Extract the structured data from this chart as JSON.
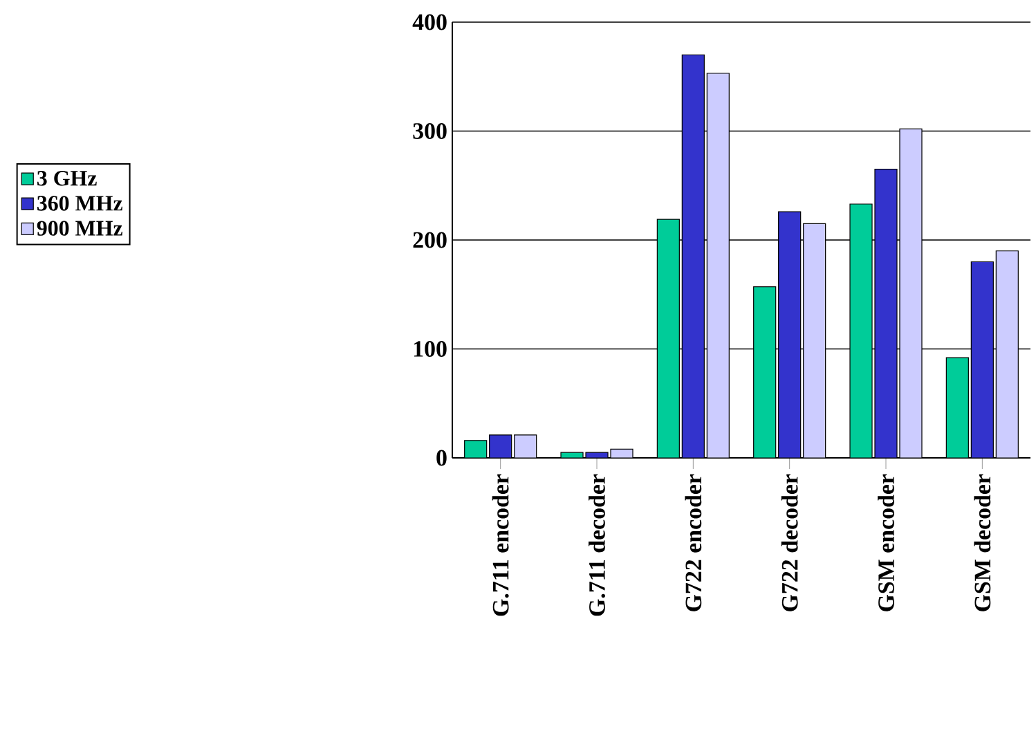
{
  "chart_data": {
    "type": "bar",
    "categories": [
      "G.711 encoder",
      "G.711 decoder",
      "G722 encoder",
      "G722 decoder",
      "GSM encoder",
      "GSM decoder"
    ],
    "series": [
      {
        "name": "3 GHz",
        "color": "#00cc99",
        "values": [
          16,
          5,
          219,
          157,
          233,
          92
        ]
      },
      {
        "name": "360 MHz",
        "color": "#3333cc",
        "values": [
          21,
          5,
          370,
          226,
          265,
          180
        ]
      },
      {
        "name": "900 MHz",
        "color": "#ccccff",
        "values": [
          21,
          8,
          353,
          215,
          302,
          190
        ]
      }
    ],
    "ylim": [
      0,
      400
    ],
    "yticks": [
      0,
      100,
      200,
      300,
      400
    ],
    "grid": "y",
    "legend": "left"
  }
}
